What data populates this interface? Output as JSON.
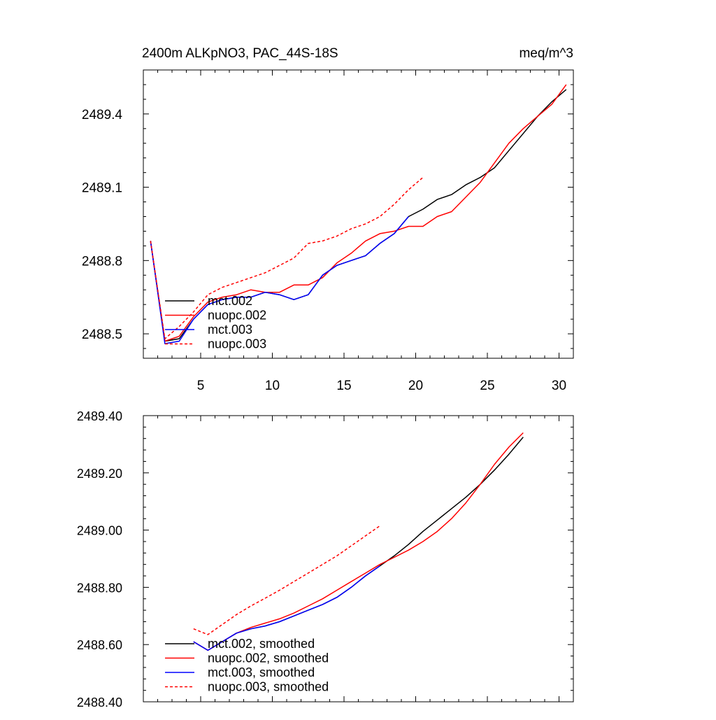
{
  "chart_data": [
    {
      "type": "line",
      "title": "2400m ALKpNO3, PAC_44S-18S",
      "units": "meq/m^3",
      "xlabel": "",
      "ylabel": "",
      "xlim": [
        1,
        31
      ],
      "ylim": [
        2488.4,
        2489.58
      ],
      "xticks": [
        5,
        10,
        15,
        20,
        25,
        30
      ],
      "xtick_labels": [
        "5",
        "10",
        "15",
        "20",
        "25",
        "30"
      ],
      "yticks": [
        2488.5,
        2488.8,
        2489.1,
        2489.4
      ],
      "ytick_labels": [
        "2488.5",
        "2488.8",
        "2489.1",
        "2489.4"
      ],
      "legend_position": "bottom-left",
      "series": [
        {
          "name": "mct.002",
          "color": "#000000",
          "dash": "solid",
          "x": [
            1.5,
            2.5,
            3.5,
            4.5,
            5.5,
            6.5,
            7.5,
            8.5,
            9.5,
            10.5,
            11.5,
            12.5,
            13.5,
            14.5,
            15.5,
            16.5,
            17.5,
            18.5,
            19.5,
            20.5,
            21.5,
            22.5,
            23.5,
            24.5,
            25.5,
            26.5,
            27.5,
            28.5,
            29.5,
            30.5
          ],
          "values": [
            2488.88,
            2488.47,
            2488.48,
            2488.56,
            2488.62,
            2488.64,
            2488.65,
            2488.65,
            2488.67,
            2488.66,
            2488.64,
            2488.66,
            2488.74,
            2488.78,
            2488.8,
            2488.82,
            2488.87,
            2488.91,
            2488.98,
            2489.01,
            2489.05,
            2489.07,
            2489.11,
            2489.14,
            2489.18,
            2489.25,
            2489.32,
            2489.39,
            2489.45,
            2489.5
          ]
        },
        {
          "name": "nuopc.002",
          "color": "#ff0000",
          "dash": "solid",
          "x": [
            1.5,
            2.5,
            3.5,
            4.5,
            5.5,
            6.5,
            7.5,
            8.5,
            9.5,
            10.5,
            11.5,
            12.5,
            13.5,
            14.5,
            15.5,
            16.5,
            17.5,
            18.5,
            19.5,
            20.5,
            21.5,
            22.5,
            23.5,
            24.5,
            25.5,
            26.5,
            27.5,
            28.5,
            29.5,
            30.5
          ],
          "values": [
            2488.88,
            2488.47,
            2488.49,
            2488.57,
            2488.63,
            2488.65,
            2488.66,
            2488.68,
            2488.67,
            2488.67,
            2488.7,
            2488.7,
            2488.73,
            2488.79,
            2488.83,
            2488.88,
            2488.91,
            2488.92,
            2488.94,
            2488.94,
            2488.98,
            2489.0,
            2489.06,
            2489.12,
            2489.2,
            2489.28,
            2489.34,
            2489.39,
            2489.44,
            2489.52
          ]
        },
        {
          "name": "mct.003",
          "color": "#0000ff",
          "dash": "solid",
          "x": [
            1.5,
            2.5,
            3.5,
            4.5,
            5.5,
            6.5,
            7.5,
            8.5,
            9.5,
            10.5,
            11.5,
            12.5,
            13.5,
            14.5,
            15.5,
            16.5,
            17.5,
            18.5,
            19.5
          ],
          "values": [
            2488.88,
            2488.46,
            2488.47,
            2488.56,
            2488.62,
            2488.64,
            2488.65,
            2488.65,
            2488.67,
            2488.66,
            2488.64,
            2488.66,
            2488.74,
            2488.78,
            2488.8,
            2488.82,
            2488.87,
            2488.91,
            2488.98
          ]
        },
        {
          "name": "nuopc.003",
          "color": "#ff0000",
          "dash": "dashed",
          "x": [
            1.5,
            2.5,
            3.5,
            4.5,
            5.5,
            6.5,
            7.5,
            8.5,
            9.5,
            10.5,
            11.5,
            12.5,
            13.5,
            14.5,
            15.5,
            16.5,
            17.5,
            18.5,
            19.5,
            20.5
          ],
          "values": [
            2488.88,
            2488.48,
            2488.53,
            2488.59,
            2488.66,
            2488.69,
            2488.71,
            2488.73,
            2488.75,
            2488.78,
            2488.81,
            2488.87,
            2488.88,
            2488.9,
            2488.93,
            2488.95,
            2488.98,
            2489.03,
            2489.09,
            2489.14
          ]
        }
      ]
    },
    {
      "type": "line",
      "title": "",
      "xlabel": "",
      "ylabel": "",
      "xlim": [
        1,
        31
      ],
      "ylim": [
        2488.4,
        2489.4
      ],
      "xticks": [
        5,
        10,
        15,
        20,
        25,
        30
      ],
      "yticks": [
        2488.4,
        2488.6,
        2488.8,
        2489.0,
        2489.2,
        2489.4
      ],
      "ytick_labels": [
        "2488.40",
        "2488.60",
        "2488.80",
        "2489.00",
        "2489.20",
        "2489.40"
      ],
      "legend_position": "bottom-left",
      "series": [
        {
          "name": "mct.002, smoothed",
          "color": "#000000",
          "dash": "solid",
          "x": [
            4.5,
            5.5,
            6.5,
            7.5,
            8.5,
            9.5,
            10.5,
            11.5,
            12.5,
            13.5,
            14.5,
            15.5,
            16.5,
            17.5,
            18.5,
            19.5,
            20.5,
            21.5,
            22.5,
            23.5,
            24.5,
            25.5,
            26.5,
            27.5
          ],
          "values": [
            2488.61,
            2488.58,
            2488.61,
            2488.64,
            2488.655,
            2488.665,
            2488.68,
            2488.7,
            2488.72,
            2488.74,
            2488.765,
            2488.8,
            2488.84,
            2488.875,
            2488.91,
            2488.95,
            2488.995,
            2489.035,
            2489.075,
            2489.115,
            2489.16,
            2489.21,
            2489.265,
            2489.325
          ]
        },
        {
          "name": "nuopc.002, smoothed",
          "color": "#ff0000",
          "dash": "solid",
          "x": [
            4.5,
            5.5,
            6.5,
            7.5,
            8.5,
            9.5,
            10.5,
            11.5,
            12.5,
            13.5,
            14.5,
            15.5,
            16.5,
            17.5,
            18.5,
            19.5,
            20.5,
            21.5,
            22.5,
            23.5,
            24.5,
            25.5,
            26.5,
            27.5
          ],
          "values": [
            2488.61,
            2488.58,
            2488.61,
            2488.64,
            2488.66,
            2488.675,
            2488.69,
            2488.71,
            2488.735,
            2488.76,
            2488.79,
            2488.82,
            2488.85,
            2488.88,
            2488.905,
            2488.93,
            2488.96,
            2488.995,
            2489.04,
            2489.095,
            2489.16,
            2489.23,
            2489.29,
            2489.34
          ]
        },
        {
          "name": "mct.003, smoothed",
          "color": "#0000ff",
          "dash": "solid",
          "x": [
            4.5,
            5.5,
            6.5,
            7.5,
            8.5,
            9.5,
            10.5,
            11.5,
            12.5,
            13.5,
            14.5,
            15.5,
            16.5,
            17.5
          ],
          "values": [
            2488.61,
            2488.58,
            2488.61,
            2488.64,
            2488.655,
            2488.665,
            2488.68,
            2488.7,
            2488.72,
            2488.74,
            2488.765,
            2488.8,
            2488.84,
            2488.875
          ]
        },
        {
          "name": "nuopc.003, smoothed",
          "color": "#ff0000",
          "dash": "dashed",
          "x": [
            4.5,
            5.5,
            6.5,
            7.5,
            8.5,
            9.5,
            10.5,
            11.5,
            12.5,
            13.5,
            14.5,
            15.5,
            16.5,
            17.5
          ],
          "values": [
            2488.655,
            2488.635,
            2488.67,
            2488.705,
            2488.735,
            2488.762,
            2488.79,
            2488.82,
            2488.85,
            2488.88,
            2488.91,
            2488.945,
            2488.98,
            2489.015
          ]
        }
      ]
    }
  ]
}
